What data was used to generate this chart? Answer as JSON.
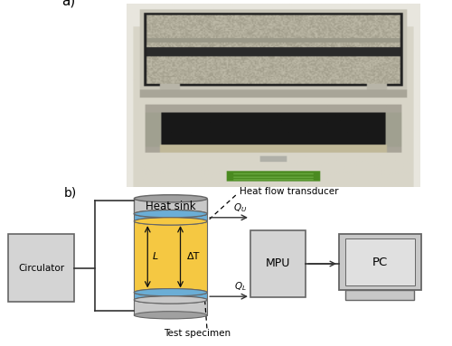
{
  "fig_width": 5.0,
  "fig_height": 3.83,
  "dpi": 100,
  "label_a": "a)",
  "label_b": "b)",
  "bg_color": "#ffffff",
  "circulator_label": "Circulator",
  "mpu_label": "MPU",
  "pc_label": "PC",
  "heat_sink_label": "Heat sink",
  "heat_flow_label": "Heat flow transducer",
  "test_specimen_label": "Test specimen",
  "L_label": "L",
  "dT_label": "ΔT",
  "cylinder_yellow": "#f5c842",
  "cylinder_blue": "#6baed6",
  "cylinder_gray_dark": "#a0a0a0",
  "cylinder_gray_light": "#c8c8c8",
  "box_fill": "#d4d4d4",
  "box_edge": "#666666",
  "arrow_color": "#111111",
  "line_color": "#333333",
  "photo_bg": "#c8c5b0",
  "photo_lid_silver": "#b8b4a0",
  "photo_foil_silver": "#a8a498",
  "photo_black": "#1a1a1a",
  "photo_machine_body": "#d8d5c8",
  "photo_green": "#5a9a30"
}
